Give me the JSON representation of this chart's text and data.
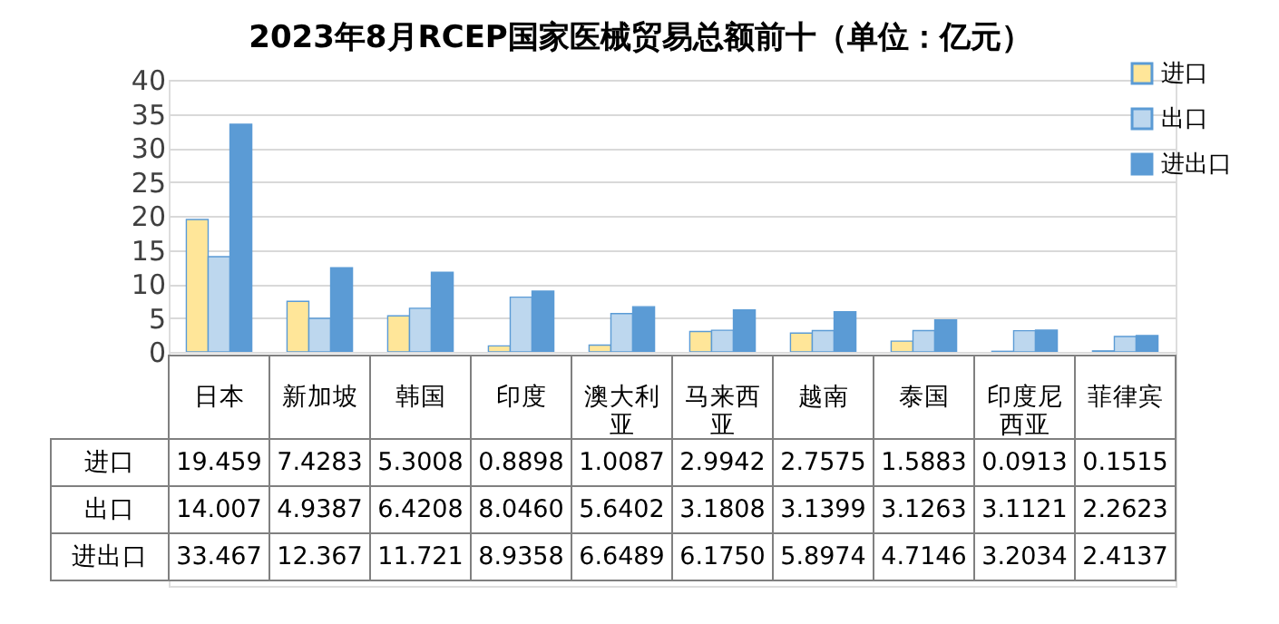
{
  "chart_data": {
    "type": "bar",
    "title": "2023年8月RCEP国家医械贸易总额前十（单位：亿元）",
    "categories": [
      "日本",
      "新加坡",
      "韩国",
      "印度",
      "澳大利亚",
      "马来西亚",
      "越南",
      "泰国",
      "印度尼西亚",
      "菲律宾"
    ],
    "series": [
      {
        "name": "进口",
        "color": "#ffe699",
        "values": [
          19.459,
          7.4283,
          5.3008,
          0.8898,
          1.0087,
          2.9942,
          2.7575,
          1.5883,
          0.0913,
          0.1515
        ],
        "value_labels": [
          "19.459",
          "7.4283",
          "5.3008",
          "0.8898",
          "1.0087",
          "2.9942",
          "2.7575",
          "1.5883",
          "0.0913",
          "0.1515"
        ]
      },
      {
        "name": "出口",
        "color": "#bdd7ee",
        "values": [
          14.007,
          4.9387,
          6.4208,
          8.046,
          5.6402,
          3.1808,
          3.1399,
          3.1263,
          3.1121,
          2.2623
        ],
        "value_labels": [
          "14.007",
          "4.9387",
          "6.4208",
          "8.0460",
          "5.6402",
          "3.1808",
          "3.1399",
          "3.1263",
          "3.1121",
          "2.2623"
        ]
      },
      {
        "name": "进出口",
        "color": "#5b9bd5",
        "values": [
          33.467,
          12.367,
          11.721,
          8.9358,
          6.6489,
          6.175,
          5.8974,
          4.7146,
          3.2034,
          2.4137
        ],
        "value_labels": [
          "33.467",
          "12.367",
          "11.721",
          "8.9358",
          "6.6489",
          "6.1750",
          "5.8974",
          "4.7146",
          "3.2034",
          "2.4137"
        ]
      }
    ],
    "ylim": [
      0,
      40
    ],
    "yticks": [
      0,
      5,
      10,
      15,
      20,
      25,
      30,
      35,
      40
    ],
    "grid": "y",
    "legend": "top right"
  }
}
